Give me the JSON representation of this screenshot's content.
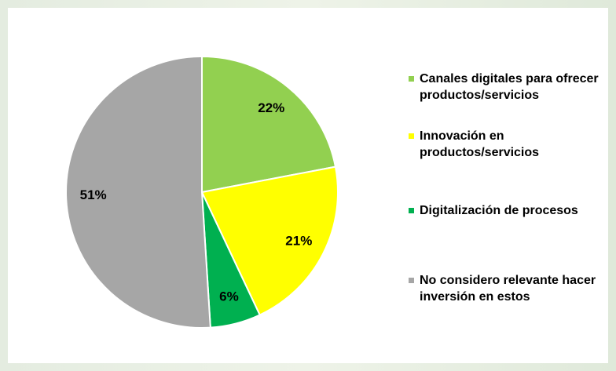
{
  "chart_data": {
    "type": "pie",
    "categories": [
      "Canales digitales para ofrecer productos/servicios",
      "Innovación en productos/servicios",
      "Digitalización de procesos",
      "No considero relevante hacer inversión en estos"
    ],
    "values": [
      22,
      21,
      6,
      51
    ],
    "value_labels": [
      "22%",
      "21%",
      "6%",
      "51%"
    ],
    "colors": [
      "#92d050",
      "#ffff00",
      "#00b050",
      "#a6a6a6"
    ]
  }
}
